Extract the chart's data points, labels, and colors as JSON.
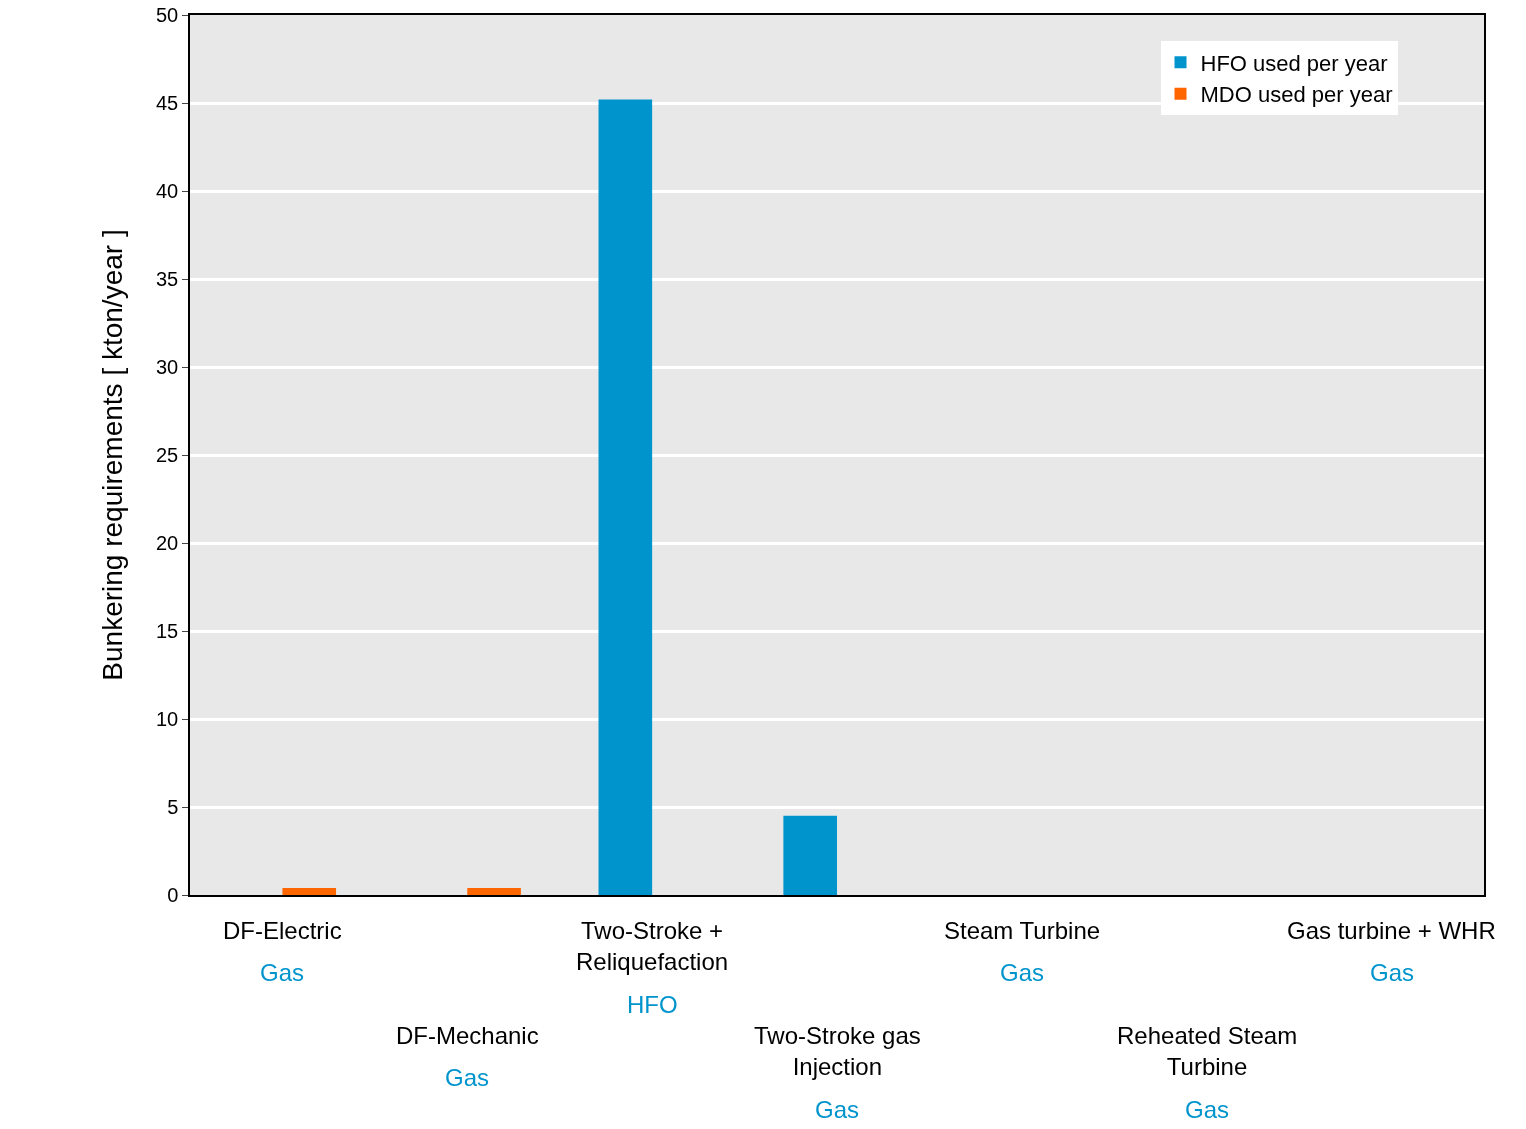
{
  "chart_data": {
    "type": "bar",
    "ylabel": "Bunkering requirements [ kton/year ]",
    "categories": [
      "DF-Electric",
      "DF-Mechanic",
      "Two-Stroke + Reliquefaction",
      "Two-Stroke gas Injection",
      "Steam Turbine",
      "Reheated Steam Turbine",
      "Gas turbine + WHR"
    ],
    "series": [
      {
        "name": "HFO used per year",
        "color": "#0094cd",
        "values": [
          0,
          0,
          45.2,
          4.5,
          0,
          0,
          0
        ]
      },
      {
        "name": "MDO used per year",
        "color": "#ff6600",
        "values": [
          0.4,
          0.4,
          0,
          0,
          0,
          0,
          0
        ]
      }
    ],
    "annotations": [
      "Gas",
      "Gas",
      "HFO",
      "Gas",
      "Gas",
      "Gas",
      "Gas"
    ],
    "ylim": [
      0,
      50
    ],
    "yticks": [
      0,
      5,
      10,
      15,
      20,
      25,
      30,
      35,
      40,
      45,
      50
    ],
    "grid": "y",
    "legend": "top right"
  }
}
